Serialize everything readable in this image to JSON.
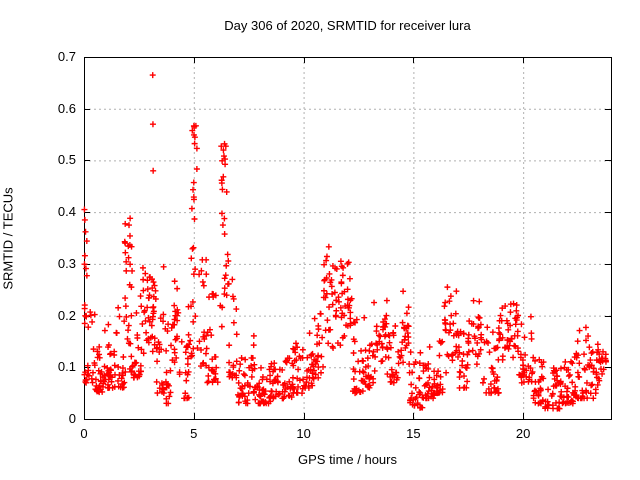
{
  "chart_data": {
    "type": "scatter",
    "title": "Day 306 of 2020, SRMTID for receiver lura",
    "xlabel": "GPS time / hours",
    "ylabel": "SRMTID / TECUs",
    "xlim": [
      0,
      24
    ],
    "ylim": [
      0,
      0.7
    ],
    "xticks": {
      "values": [
        0,
        5,
        10,
        15,
        20
      ],
      "labels": [
        "0",
        "5",
        "10",
        "15",
        "20"
      ]
    },
    "yticks": {
      "values": [
        0,
        0.1,
        0.2,
        0.3,
        0.4,
        0.5,
        0.6,
        0.7
      ],
      "labels": [
        "0",
        "0.1",
        "0.2",
        "0.3",
        "0.4",
        "0.5",
        "0.6",
        "0.7"
      ]
    },
    "grid": true,
    "legend": "none",
    "series": [
      {
        "name": "SRMTID",
        "marker": "plus",
        "color": "#ff0000"
      }
    ],
    "colors": {
      "marker": "#ff0000",
      "grid": "#b0b0b0",
      "frame": "#000000",
      "background": "#ffffff",
      "text": "#000000"
    },
    "envelope_bins_format": [
      "hour_start",
      "hour_end",
      "n_points",
      "value_min",
      "value_max",
      "bias(0=low,1=mid,2=high)"
    ],
    "envelope_bins": [
      [
        0.0,
        0.17,
        10,
        0.15,
        0.41,
        1
      ],
      [
        0.02,
        0.5,
        22,
        0.07,
        0.22,
        0
      ],
      [
        0.5,
        1.0,
        30,
        0.05,
        0.18,
        0
      ],
      [
        1.0,
        1.5,
        30,
        0.06,
        0.19,
        0
      ],
      [
        1.5,
        1.85,
        18,
        0.06,
        0.22,
        0
      ],
      [
        1.85,
        2.2,
        15,
        0.24,
        0.39,
        1
      ],
      [
        1.8,
        2.25,
        16,
        0.09,
        0.24,
        0
      ],
      [
        2.25,
        2.6,
        20,
        0.08,
        0.27,
        0
      ],
      [
        2.6,
        3.0,
        24,
        0.09,
        0.33,
        1
      ],
      [
        3.0,
        3.3,
        20,
        0.1,
        0.31,
        1
      ],
      [
        3.3,
        3.7,
        22,
        0.05,
        0.3,
        0
      ],
      [
        3.7,
        4.0,
        18,
        0.03,
        0.2,
        0
      ],
      [
        4.0,
        4.35,
        20,
        0.08,
        0.33,
        1
      ],
      [
        4.35,
        4.8,
        22,
        0.04,
        0.25,
        0
      ],
      [
        4.9,
        5.15,
        14,
        0.32,
        0.57,
        2
      ],
      [
        4.8,
        5.25,
        15,
        0.12,
        0.33,
        0
      ],
      [
        5.25,
        5.6,
        18,
        0.1,
        0.33,
        0
      ],
      [
        5.6,
        6.1,
        26,
        0.07,
        0.25,
        0
      ],
      [
        6.25,
        6.55,
        15,
        0.35,
        0.53,
        2
      ],
      [
        6.2,
        6.6,
        13,
        0.17,
        0.35,
        1
      ],
      [
        6.6,
        7.0,
        20,
        0.08,
        0.28,
        0
      ],
      [
        7.0,
        7.5,
        28,
        0.03,
        0.12,
        0
      ],
      [
        7.5,
        7.8,
        16,
        0.05,
        0.17,
        0
      ],
      [
        7.8,
        8.5,
        36,
        0.03,
        0.1,
        0
      ],
      [
        8.5,
        9.0,
        26,
        0.04,
        0.11,
        0
      ],
      [
        9.0,
        9.5,
        26,
        0.04,
        0.13,
        0
      ],
      [
        9.5,
        10.0,
        26,
        0.05,
        0.15,
        0
      ],
      [
        10.0,
        10.5,
        26,
        0.06,
        0.18,
        0
      ],
      [
        10.5,
        10.9,
        20,
        0.07,
        0.21,
        0
      ],
      [
        10.9,
        11.6,
        34,
        0.12,
        0.34,
        1
      ],
      [
        11.6,
        12.2,
        32,
        0.12,
        0.31,
        1
      ],
      [
        12.2,
        12.8,
        30,
        0.05,
        0.2,
        0
      ],
      [
        12.8,
        13.2,
        22,
        0.06,
        0.17,
        0
      ],
      [
        13.2,
        13.9,
        34,
        0.08,
        0.24,
        1
      ],
      [
        13.9,
        14.3,
        20,
        0.07,
        0.18,
        0
      ],
      [
        14.3,
        14.8,
        26,
        0.09,
        0.25,
        1
      ],
      [
        14.8,
        15.5,
        34,
        0.02,
        0.13,
        0
      ],
      [
        15.5,
        16.0,
        28,
        0.04,
        0.14,
        0
      ],
      [
        16.0,
        16.4,
        20,
        0.05,
        0.16,
        0
      ],
      [
        16.4,
        17.1,
        34,
        0.08,
        0.26,
        1
      ],
      [
        17.1,
        17.5,
        20,
        0.06,
        0.18,
        0
      ],
      [
        17.5,
        18.1,
        28,
        0.09,
        0.25,
        1
      ],
      [
        18.1,
        18.9,
        36,
        0.05,
        0.18,
        0
      ],
      [
        18.9,
        19.8,
        44,
        0.1,
        0.24,
        1
      ],
      [
        19.8,
        20.4,
        30,
        0.07,
        0.2,
        0
      ],
      [
        20.4,
        21.0,
        30,
        0.03,
        0.12,
        0
      ],
      [
        21.0,
        21.7,
        34,
        0.02,
        0.1,
        0
      ],
      [
        21.7,
        22.3,
        32,
        0.03,
        0.12,
        0
      ],
      [
        22.3,
        23.0,
        36,
        0.04,
        0.18,
        0
      ],
      [
        23.0,
        23.4,
        22,
        0.04,
        0.15,
        0
      ],
      [
        23.4,
        23.8,
        20,
        0.06,
        0.17,
        1
      ]
    ],
    "outlier_points": [
      [
        3.13,
        0.665
      ],
      [
        3.14,
        0.57
      ],
      [
        3.15,
        0.48
      ],
      [
        0.02,
        0.405
      ],
      [
        0.04,
        0.385
      ],
      [
        0.07,
        0.362
      ],
      [
        2.05,
        0.375
      ],
      [
        2.1,
        0.388
      ],
      [
        5.02,
        0.565
      ],
      [
        5.05,
        0.545
      ],
      [
        6.35,
        0.52
      ],
      [
        6.4,
        0.532
      ],
      [
        11.15,
        0.333
      ],
      [
        11.7,
        0.305
      ],
      [
        12.0,
        0.3
      ],
      [
        16.55,
        0.255
      ]
    ]
  }
}
